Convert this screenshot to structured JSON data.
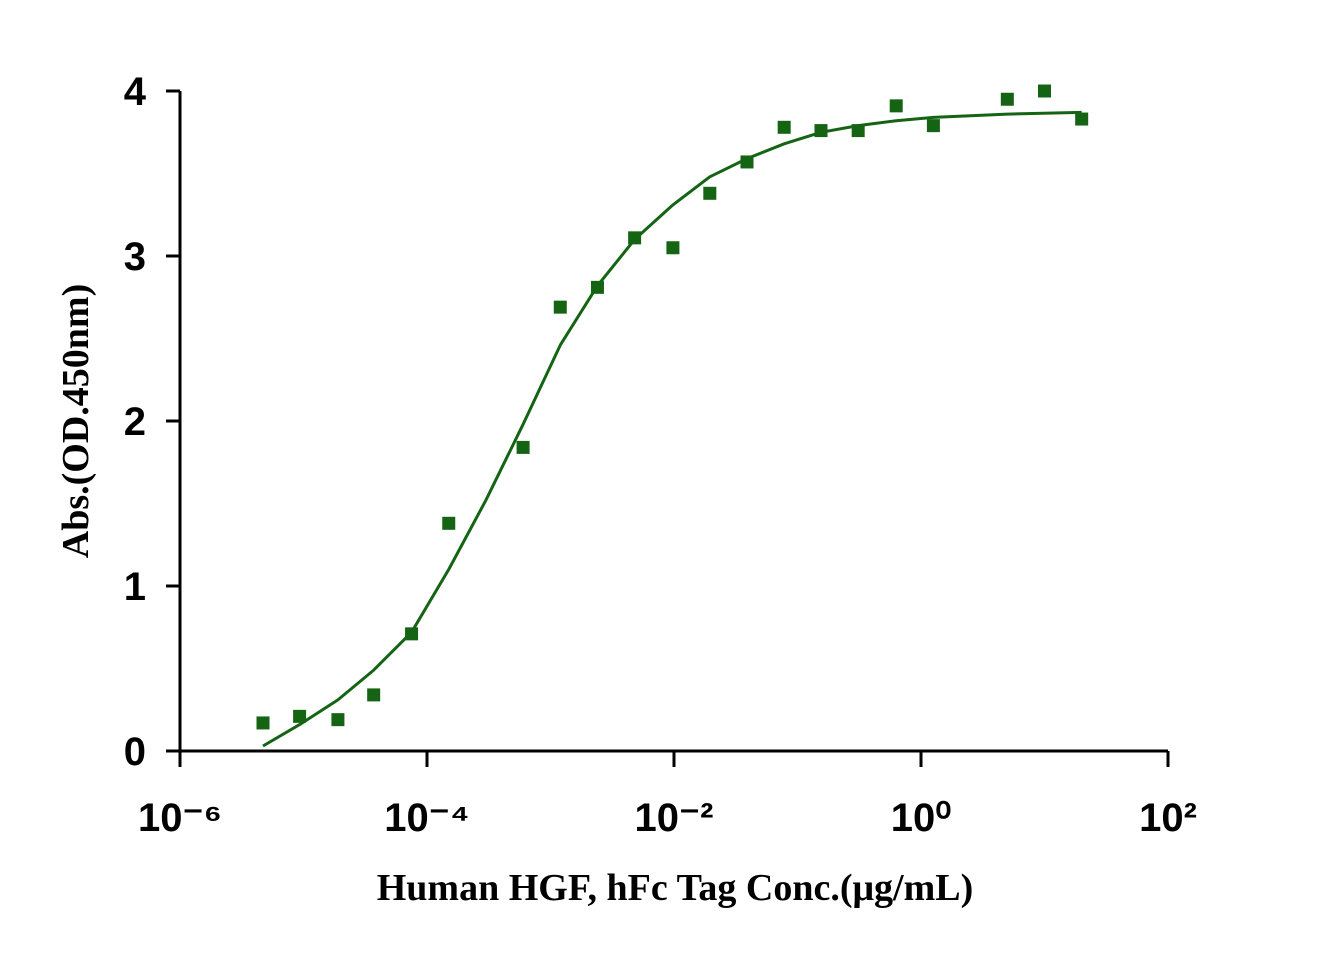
{
  "chart_data": {
    "type": "scatter",
    "x_label": "Human HGF, hFc Tag Conc.(μg/mL)",
    "y_label": "Abs.(OD.450nm)",
    "x_scale": "log",
    "marker": "square",
    "color": "#146414",
    "x": [
      4.7e-06,
      9.3e-06,
      1.9e-05,
      3.7e-05,
      7.5e-05,
      0.00015,
      0.0006,
      0.0012,
      0.0024,
      0.0048,
      0.0098,
      0.0195,
      0.039,
      0.078,
      0.155,
      0.31,
      0.63,
      1.26,
      5.0,
      10,
      20
    ],
    "values": [
      0.17,
      0.21,
      0.19,
      0.34,
      0.71,
      1.38,
      1.84,
      2.69,
      2.81,
      3.11,
      3.05,
      3.38,
      3.57,
      3.78,
      3.76,
      3.76,
      3.91,
      3.79,
      3.95,
      4.0,
      3.83
    ],
    "fit": {
      "type": "line",
      "color": "#146414",
      "x": [
        4.7e-06,
        9.3e-06,
        1.9e-05,
        3.7e-05,
        7.5e-05,
        0.00015,
        0.0003,
        0.0006,
        0.0012,
        0.0024,
        0.0048,
        0.0098,
        0.0195,
        0.039,
        0.078,
        0.155,
        0.31,
        0.63,
        1.26,
        5.0,
        20
      ],
      "values": [
        0.03,
        0.16,
        0.31,
        0.49,
        0.72,
        1.1,
        1.52,
        1.98,
        2.46,
        2.82,
        3.1,
        3.31,
        3.48,
        3.59,
        3.68,
        3.75,
        3.79,
        3.82,
        3.84,
        3.86,
        3.87
      ]
    },
    "xlim": [
      1e-06,
      100
    ],
    "xticks": [
      {
        "value": 1e-06,
        "label": "10⁻⁶"
      },
      {
        "value": 0.0001,
        "label": "10⁻⁴"
      },
      {
        "value": 0.01,
        "label": "10⁻²"
      },
      {
        "value": 1,
        "label": "10⁰"
      },
      {
        "value": 100,
        "label": "10²"
      }
    ],
    "ylim": [
      0,
      4
    ],
    "yticks": [
      0,
      1,
      2,
      3,
      4
    ],
    "grid": false
  }
}
